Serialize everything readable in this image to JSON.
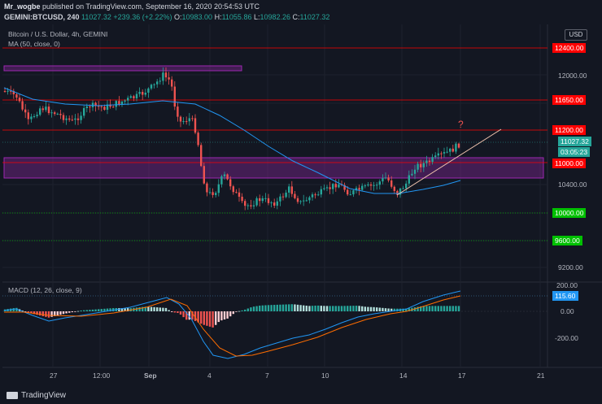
{
  "header": {
    "author": "Mr_wogbe",
    "published_text": "published on TradingView.com, September 16, 2020 20:54:53 UTC",
    "symbol": "GEMINI:BTCUSD, 240",
    "last": "11027.32",
    "change": "+239.36 (+2.22%)",
    "o_label": "O:",
    "o_val": "10983.00",
    "h_label": "H:",
    "h_val": "11055.86",
    "l_label": "L:",
    "l_val": "10982.26",
    "c_label": "C:",
    "c_val": "11027.32"
  },
  "legend": {
    "title": "Bitcoin / U.S. Dollar, 4h, GEMINI",
    "ma": "MA (50, close, 0)",
    "macd": "MACD (12, 26, close, 9)"
  },
  "currency_button": "USD",
  "annotation": "?",
  "price_axis": {
    "ticks": [
      "12000.00",
      "10400.00",
      "9200.00"
    ],
    "tags": [
      {
        "text": "12400.00",
        "color": "#ff0000"
      },
      {
        "text": "11650.00",
        "color": "#ff0000"
      },
      {
        "text": "11200.00",
        "color": "#ff0000"
      },
      {
        "text": "11027.32",
        "color": "#26a69a"
      },
      {
        "text": "03:05:23",
        "color": "#26a69a"
      },
      {
        "text": "11000.00",
        "color": "#ff0000"
      },
      {
        "text": "10000.00",
        "color": "#00c000"
      },
      {
        "text": "9600.00",
        "color": "#00c000"
      }
    ]
  },
  "macd_axis": {
    "ticks": [
      "200.00",
      "0.00",
      "-200.00"
    ],
    "tag": "115.60"
  },
  "time_axis": [
    "27",
    "12:00",
    "Sep",
    "4",
    "7",
    "10",
    "14",
    "17",
    "21"
  ],
  "footer": {
    "brand": "TradingView"
  },
  "colors": {
    "background": "#131722",
    "up": "#26a69a",
    "down": "#ef5350",
    "ma": "#2196f3",
    "zone": "#9c27b0",
    "resistance": "#ff0000",
    "support": "#00c000"
  },
  "chart_data": {
    "type": "candlestick",
    "symbol": "BTCUSD",
    "interval": "4h",
    "price_levels": {
      "red": [
        12400,
        11650,
        11200,
        11000
      ],
      "green": [
        10000,
        9600
      ]
    },
    "supply_zone": [
      12150,
      12210
    ],
    "demand_zone": [
      10580,
      10920
    ],
    "last_price": 11027.32
  }
}
